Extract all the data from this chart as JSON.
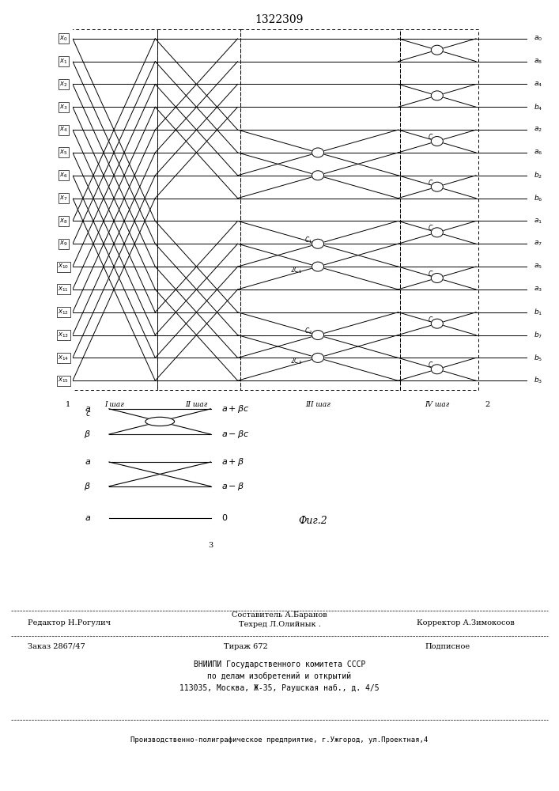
{
  "title": "1322309",
  "bg_color": "#ffffff",
  "input_labels": [
    "x0",
    "x1",
    "x2",
    "x3",
    "x4",
    "x5",
    "x6",
    "x7",
    "x8",
    "x9",
    "x10",
    "x11",
    "x12",
    "x13",
    "x14",
    "x15"
  ],
  "output_labels": [
    "a0",
    "a8",
    "a4",
    "b4",
    "a2",
    "a6",
    "b2",
    "b6",
    "a1",
    "a7",
    "a5",
    "a3",
    "b1",
    "b7",
    "b5",
    "b3"
  ],
  "stage_labels": [
    "I шаг",
    "II шаг",
    "III шаг",
    "IV шаг"
  ],
  "fig_caption": "Фиг.2",
  "bottom_left": "Редактор Н.Рогулич",
  "bottom_center1": "Составитель А.Баранов",
  "bottom_center2": "Техред Л.Олийнык .",
  "bottom_right": "Корректор А.Зимокосов",
  "order": "Заказ 2867/47",
  "tirazh": "Тираж 672",
  "podpisnoe": "Подписное",
  "vn1": "ВНИИПИ Государственного комитета СССР",
  "vn2": "по делам изобретений и открытий",
  "vn3": "113035, Москва, Ж-35, Раушская наб., д. 4/5",
  "prod": "Производственно-полиграфическое предприятие, г.Ужгород, ул.Проектная,4"
}
